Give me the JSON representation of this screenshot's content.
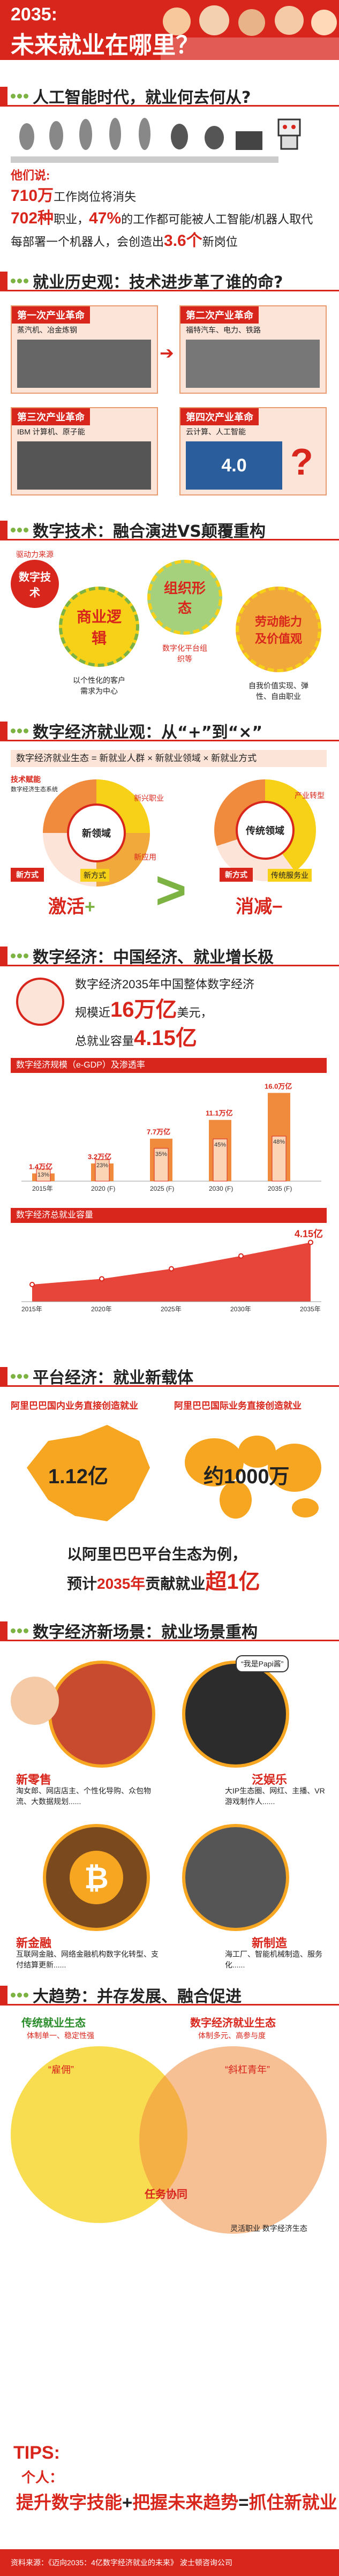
{
  "header": {
    "year": "2035:",
    "title": "未来就业在哪里？"
  },
  "s1": {
    "title": "人工智能时代，就业何去何从?",
    "sub": "他们说:",
    "l1a": "710万",
    "l1b": "工作岗位将消失",
    "l2a": "702种",
    "l2b": "职业，",
    "l2c": "47%",
    "l2d": "的工作都可能被人工智能/机器人取代",
    "l3a": "每部署一个机器人，会创造出",
    "l3b": "3.6个",
    "l3c": "新岗位"
  },
  "s2": {
    "title": "就业历史观：技术进步革了谁的命?",
    "items": [
      {
        "tag": "第一次产业革命",
        "desc": "蒸汽机、冶金炼钢"
      },
      {
        "tag": "第二次产业革命",
        "desc": "福特汽车、电力、铁路"
      },
      {
        "tag": "第三次产业革命",
        "desc": "IBM 计算机、原子能"
      },
      {
        "tag": "第四次产业革命",
        "desc": "云计算、人工智能"
      }
    ],
    "v40": "4.0",
    "q": "?"
  },
  "s3": {
    "title": "数字技术：融合演进VS颠覆重构",
    "drive": "驱动力来源",
    "c1": "数字技术",
    "c2": "商业逻辑",
    "c3": "组织形态",
    "c4": "劳动能力及价值观",
    "n2": "以个性化的客户需求为中心",
    "n3": "数字化平台组织等",
    "n4": "自我价值实现、弹性、自由职业"
  },
  "s4": {
    "title": "数字经济就业观：从“+”到“×”",
    "formula": "数字经济就业生态 = 新就业人群 × 新就业领域 × 新就业方式",
    "l_tech": "技术赋能",
    "l_tech2": "数字经济生态系统",
    "l_new": "新领域",
    "l_fw": "新方式",
    "l_fw2": "新方式",
    "l_fan": "新兴职业",
    "l_app": "新应用",
    "r_trad": "传统领域",
    "r_ind": "产业转型",
    "r_fw": "新方式",
    "r_fan": "传统服务业",
    "jihuo": "激活",
    "xiaojian": "消减",
    "plus": "+",
    "minus": "−",
    "gt": ">"
  },
  "s5": {
    "title": "数字经济：中国经济、就业增长极",
    "p1": "数字经济2035年中国整体数字经济",
    "p2a": "规模近",
    "p2b": "16万亿",
    "p2c": "美元，",
    "p3a": "总就业容量",
    "p3b": "4.15亿",
    "chart1title": "数字经济规模（e-GDP）及渗透率",
    "chart2title": "数字经济总就业容量"
  },
  "chart_data": [
    {
      "type": "bar",
      "title": "数字经济规模（e-GDP）及渗透率",
      "categories": [
        "2015年",
        "2020 (F)",
        "2025 (F)",
        "2030 (F)",
        "2035 (F)"
      ],
      "series": [
        {
          "name": "",
          "values": [
            1.4,
            3.2,
            7.7,
            11.1,
            16.0
          ],
          "labels": [
            "1.4万亿",
            "3.2万亿",
            "7.7万亿",
            "11.1万亿",
            "16.0万亿"
          ]
        },
        {
          "name": "",
          "values": [
            13,
            23,
            35,
            45,
            48
          ],
          "labels": [
            "13%",
            "23%",
            "35%",
            "45%",
            "48%"
          ]
        }
      ]
    },
    {
      "type": "area",
      "title": "数字经济总就业容量",
      "categories": [
        "2015年",
        "2020年",
        "2025年",
        "2030年",
        "2035年"
      ],
      "values": [
        1.2,
        1.6,
        2.3,
        3.2,
        4.15
      ],
      "labels": [
        "",
        "",
        "",
        "",
        "4.15亿"
      ]
    }
  ],
  "s6": {
    "title": "平台经济：就业新载体",
    "l1": "阿里巴巴国内业务直接创造就业",
    "l2": "阿里巴巴国际业务直接创造就业",
    "v1": "1.12亿",
    "v2": "约1000万",
    "f1": "以阿里巴巴平台生态为例，",
    "f2a": "预计",
    "f2b": "2035年",
    "f2c": "贡献就业",
    "f2d": "超1亿"
  },
  "s7": {
    "title": "数字经济新场景：就业场景重构",
    "items": [
      {
        "name": "新零售",
        "desc": "淘女郎、网店店主、个性化导购、众包物流、大数据规划......"
      },
      {
        "name": "泛娱乐",
        "desc": "大IP生态圈、网红、主播、VR游戏制作人......"
      },
      {
        "name": "新金融",
        "desc": "互联网金融、网络金融机构数字化转型、支付结算更新......"
      },
      {
        "name": "新制造",
        "desc": "海工厂、智能机械制造、服务化......"
      }
    ],
    "bubble": "“我是Papi酱”"
  },
  "s8": {
    "title": "大趋势：并存发展、融合促进",
    "left": "传统就业生态",
    "right": "数字经济就业生态",
    "t1": "体制单一、稳定性强",
    "t2": "体制多元、高参与度",
    "lab1": "“雇佣”",
    "lab2": "“斜杠青年”",
    "mid": "任务协同",
    "m2": "灵活职业 数字经济生态"
  },
  "tips": {
    "label": "TIPS:",
    "who": "个人：",
    "l1a": "提升数字技能",
    "p1": "+",
    "l1b": "把握未来趋势",
    "eq": "=",
    "l1c": "抓住新就业"
  },
  "source": {
    "label": "资料来源：",
    "text": "《迈向2035：4亿数字经济就业的未来》 波士顿咨询公司"
  },
  "colors": {
    "accent": "#d8261c",
    "green": "#7cb342",
    "peach": "#fce4d8"
  }
}
